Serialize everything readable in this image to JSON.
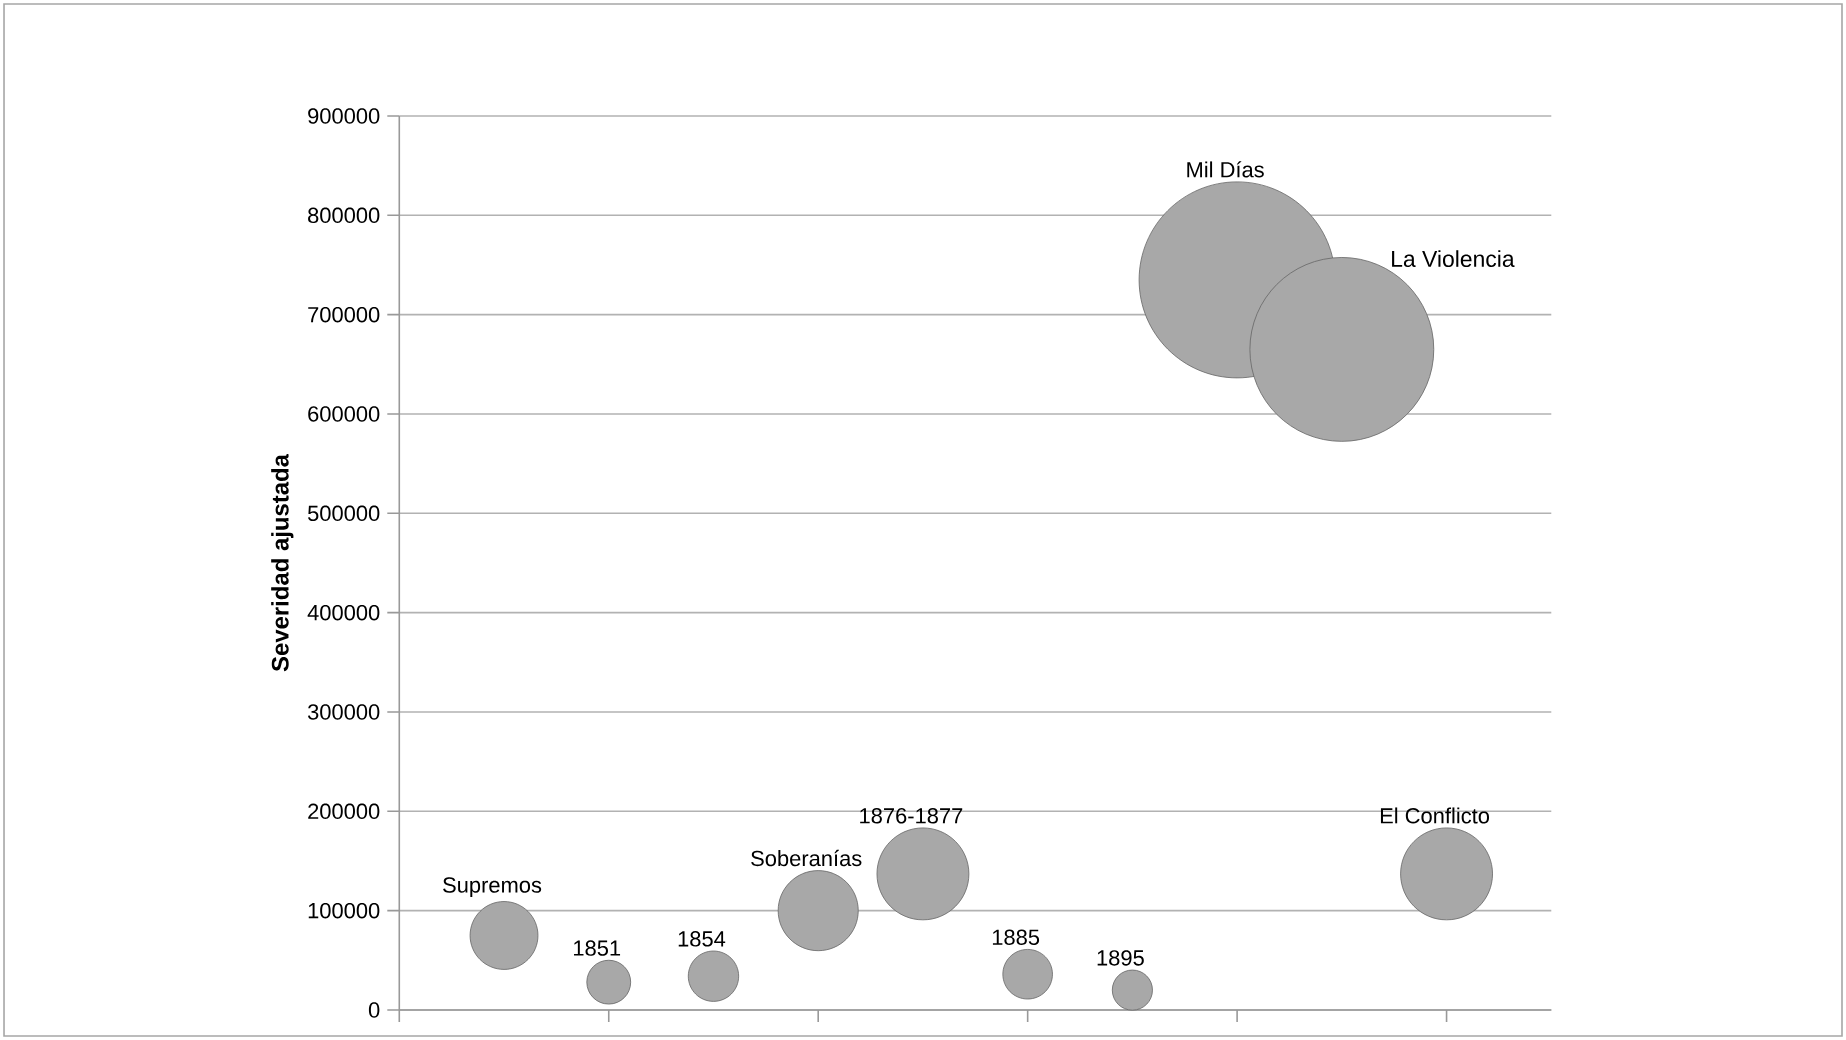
{
  "chart_data": {
    "type": "bubble",
    "ylabel": "Severidad ajustada",
    "categories": [
      null,
      null,
      null,
      null,
      null,
      null,
      null,
      null,
      null,
      null
    ],
    "series": [
      {
        "name": "Supremos",
        "values": [
          75000,
          null,
          null,
          null,
          null,
          null,
          null,
          null,
          null,
          null
        ],
        "sizes": [
          0.12,
          null,
          null,
          null,
          null,
          null,
          null,
          null,
          null,
          null
        ]
      },
      {
        "name": "1851",
        "values": [
          null,
          28000,
          null,
          null,
          null,
          null,
          null,
          null,
          null,
          null
        ],
        "sizes": [
          null,
          0.05,
          null,
          null,
          null,
          null,
          null,
          null,
          null,
          null
        ]
      },
      {
        "name": "1854",
        "values": [
          null,
          null,
          34000,
          null,
          null,
          null,
          null,
          null,
          null,
          null
        ],
        "sizes": [
          null,
          null,
          0.066,
          null,
          null,
          null,
          null,
          null,
          null,
          null
        ]
      },
      {
        "name": "Soberanías",
        "values": [
          null,
          null,
          null,
          100000,
          null,
          null,
          null,
          null,
          null,
          null
        ],
        "sizes": [
          null,
          null,
          null,
          0.167,
          null,
          null,
          null,
          null,
          null,
          null
        ]
      },
      {
        "name": "1876-1877",
        "values": [
          null,
          null,
          null,
          null,
          137000,
          null,
          null,
          null,
          null,
          null
        ],
        "sizes": [
          null,
          null,
          null,
          null,
          0.22,
          null,
          null,
          null,
          null,
          null
        ]
      },
      {
        "name": "1885",
        "values": [
          null,
          null,
          null,
          null,
          null,
          36000,
          null,
          null,
          null,
          null
        ],
        "sizes": [
          null,
          null,
          null,
          null,
          null,
          0.064,
          null,
          null,
          null,
          null
        ]
      },
      {
        "name": "1895",
        "values": [
          null,
          null,
          null,
          null,
          null,
          null,
          20000,
          null,
          null,
          null
        ],
        "sizes": [
          null,
          null,
          null,
          null,
          null,
          null,
          0.042,
          null,
          null,
          null
        ]
      },
      {
        "name": "Mil Días",
        "values": [
          null,
          null,
          null,
          null,
          null,
          null,
          null,
          735000,
          null,
          null
        ],
        "sizes": [
          null,
          null,
          null,
          null,
          null,
          null,
          null,
          1,
          null,
          null
        ]
      },
      {
        "name": "La Violencia",
        "values": [
          null,
          null,
          null,
          null,
          null,
          null,
          null,
          null,
          665000,
          null
        ],
        "sizes": [
          null,
          null,
          null,
          null,
          null,
          null,
          null,
          null,
          0.88,
          null
        ]
      },
      {
        "name": "El Conflicto",
        "values": [
          null,
          null,
          null,
          null,
          null,
          null,
          null,
          null,
          null,
          137000
        ],
        "sizes": [
          null,
          null,
          null,
          null,
          null,
          null,
          null,
          null,
          null,
          0.22
        ]
      }
    ],
    "color": "#a8a8a8",
    "ylim": [
      0,
      900000
    ],
    "yticks": [
      0,
      100000,
      200000,
      300000,
      400000,
      500000,
      600000,
      700000,
      800000,
      900000
    ],
    "grid": "y"
  }
}
